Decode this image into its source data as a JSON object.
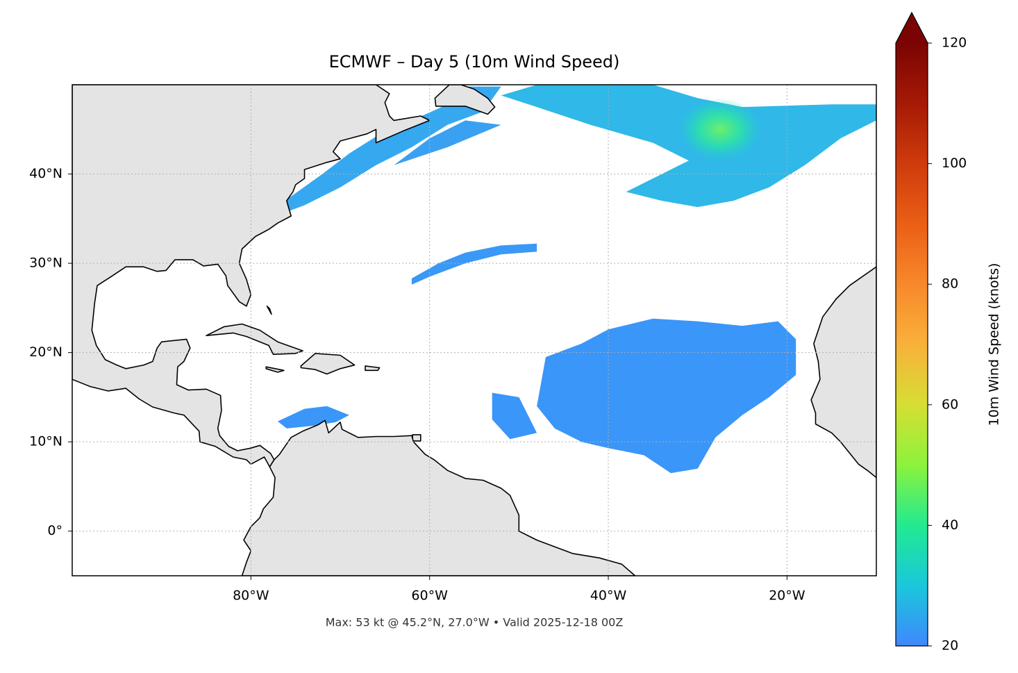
{
  "map": {
    "title": "ECMWF – Day 5 (10m Wind Speed)",
    "footer": "Max: 53 kt @ 45.2°N, 27.0°W • Valid 2025-12-18 00Z",
    "xlim": [
      -100,
      -10
    ],
    "ylim": [
      -5,
      50
    ],
    "xticks": [
      {
        "value": -80,
        "label": "80°W"
      },
      {
        "value": -60,
        "label": "60°W"
      },
      {
        "value": -40,
        "label": "40°W"
      },
      {
        "value": -20,
        "label": "20°W"
      }
    ],
    "yticks": [
      {
        "value": 0,
        "label": "0°"
      },
      {
        "value": 10,
        "label": "10°N"
      },
      {
        "value": 20,
        "label": "20°N"
      },
      {
        "value": 30,
        "label": "30°N"
      },
      {
        "value": 40,
        "label": "40°N"
      }
    ],
    "grid": true
  },
  "colorbar": {
    "label": "10m Wind Speed (knots)",
    "lim": [
      20,
      120
    ],
    "ticks": [
      20,
      40,
      60,
      80,
      100,
      120
    ],
    "extend": "max",
    "colors": [
      "#3f88fd",
      "#1ac7db",
      "#22ea90",
      "#8cf33c",
      "#d6de33",
      "#f9b13a",
      "#f8882a",
      "#ea5f16",
      "#cf3b0c",
      "#a61a05",
      "#7a0403"
    ]
  }
}
